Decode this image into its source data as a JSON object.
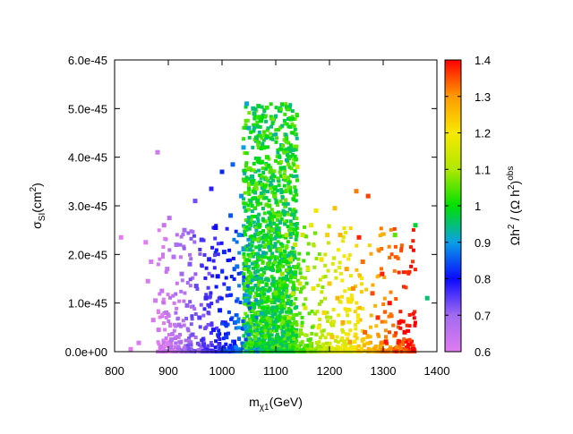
{
  "chart_data": {
    "type": "scatter",
    "xlabel": {
      "base": "m",
      "sub": "χ1",
      "unit": "(GeV)"
    },
    "ylabel": {
      "base": "σ",
      "sub": "SI",
      "unit": "(cm",
      "sup": "2",
      "close": ")"
    },
    "colorbar_label": {
      "a": "Ωh",
      "a_sup": "2",
      "mid": " / (Ω h",
      "b_sup": "2",
      "close": ")",
      "sup": "obs"
    },
    "xlim": [
      800,
      1400
    ],
    "ylim": [
      0,
      6e-45
    ],
    "clim": [
      0.6,
      1.4
    ],
    "x_ticks": [
      800,
      900,
      1000,
      1100,
      1200,
      1300,
      1400
    ],
    "x_tick_labels": [
      "800",
      "900",
      "1000",
      "1100",
      "1200",
      "1300",
      "1400"
    ],
    "y_ticks": [
      0,
      1e-45,
      2e-45,
      3e-45,
      4e-45,
      5e-45,
      6e-45
    ],
    "y_tick_labels": [
      "0.0e+00",
      "1.0e-45",
      "2.0e-45",
      "3.0e-45",
      "4.0e-45",
      "5.0e-45",
      "6.0e-45"
    ],
    "c_ticks": [
      0.6,
      0.7,
      0.8,
      0.9,
      1.0,
      1.1,
      1.2,
      1.3,
      1.4
    ],
    "c_tick_labels": [
      "0.6",
      "0.7",
      "0.8",
      "0.9",
      "1",
      "1.1",
      "1.2",
      "1.3",
      "1.4"
    ],
    "grid": false,
    "points": [
      [
        812,
        2.35e-45,
        0.6
      ],
      [
        830,
        5e-47,
        0.6
      ],
      [
        845,
        1.8e-46,
        0.61
      ],
      [
        858,
        2.25e-45,
        0.6
      ],
      [
        862,
        1.45e-45,
        0.61
      ],
      [
        868,
        1.85e-45,
        0.61
      ],
      [
        872,
        6.5e-46,
        0.62
      ],
      [
        876,
        1.05e-45,
        0.62
      ],
      [
        880,
        4.1e-45,
        0.63
      ],
      [
        882,
        4.5e-46,
        0.63
      ],
      [
        888,
        1.25e-45,
        0.64
      ],
      [
        892,
        2.6e-45,
        0.64
      ],
      [
        896,
        8e-46,
        0.65
      ],
      [
        898,
        1.7e-45,
        0.65
      ],
      [
        902,
        2.75e-45,
        0.66
      ],
      [
        906,
        2.5e-46,
        0.66
      ],
      [
        910,
        1.95e-45,
        0.67
      ],
      [
        915,
        2.2e-45,
        0.68
      ],
      [
        920,
        5.5e-46,
        0.69
      ],
      [
        925,
        1.6e-45,
        0.7
      ],
      [
        930,
        2.5e-45,
        0.7
      ],
      [
        935,
        9.5e-46,
        0.71
      ],
      [
        940,
        1.8e-45,
        0.72
      ],
      [
        945,
        3.5e-46,
        0.73
      ],
      [
        950,
        3.1e-45,
        0.73
      ],
      [
        952,
        1.35e-45,
        0.74
      ],
      [
        958,
        7e-46,
        0.75
      ],
      [
        962,
        2.3e-45,
        0.76
      ],
      [
        966,
        1.5e-46,
        0.76
      ],
      [
        970,
        1.1e-45,
        0.77
      ],
      [
        976,
        1.9e-45,
        0.78
      ],
      [
        980,
        3.35e-45,
        0.78
      ],
      [
        984,
        4.5e-46,
        0.79
      ],
      [
        988,
        2.55e-45,
        0.8
      ],
      [
        992,
        1.55e-45,
        0.8
      ],
      [
        996,
        8.5e-46,
        0.81
      ],
      [
        1000,
        3.7e-45,
        0.82
      ],
      [
        1004,
        2.05e-45,
        0.82
      ],
      [
        1008,
        3e-46,
        0.83
      ],
      [
        1012,
        1.3e-45,
        0.84
      ],
      [
        1016,
        2.8e-45,
        0.85
      ],
      [
        1020,
        3.85e-45,
        0.86
      ],
      [
        1024,
        6e-46,
        0.86
      ],
      [
        1028,
        1.75e-45,
        0.87
      ],
      [
        1032,
        2.4e-45,
        0.88
      ],
      [
        1036,
        3.2e-45,
        0.89
      ],
      [
        1040,
        4.2e-45,
        0.9
      ],
      [
        1044,
        1.05e-45,
        0.9
      ],
      [
        1046,
        5.1e-45,
        0.91
      ],
      [
        1050,
        4.6e-45,
        0.92
      ],
      [
        1052,
        2.1e-45,
        0.93
      ],
      [
        1056,
        3.6e-45,
        0.94
      ],
      [
        1058,
        5e-45,
        0.95
      ],
      [
        1060,
        4.9e-45,
        0.96
      ],
      [
        1062,
        1.5e-45,
        0.96
      ],
      [
        1064,
        4.4e-45,
        0.97
      ],
      [
        1066,
        3.1e-45,
        0.98
      ],
      [
        1068,
        5.05e-45,
        0.98
      ],
      [
        1070,
        2.6e-45,
        0.99
      ],
      [
        1072,
        4.75e-45,
        1.0
      ],
      [
        1074,
        3.9e-45,
        1.0
      ],
      [
        1076,
        9e-46,
        1.0
      ],
      [
        1078,
        4.2e-45,
        1.01
      ],
      [
        1080,
        3.4e-45,
        1.01
      ],
      [
        1082,
        2.3e-45,
        1.02
      ],
      [
        1084,
        4e-45,
        1.02
      ],
      [
        1086,
        1.8e-45,
        1.03
      ],
      [
        1088,
        3e-45,
        1.03
      ],
      [
        1090,
        3.7e-45,
        1.04
      ],
      [
        1094,
        2.5e-45,
        1.05
      ],
      [
        1098,
        3.2e-45,
        1.05
      ],
      [
        1100,
        1.2e-45,
        1.06
      ],
      [
        1104,
        2.8e-45,
        1.06
      ],
      [
        1108,
        2.1e-45,
        1.07
      ],
      [
        1112,
        1.6e-45,
        1.08
      ],
      [
        1116,
        3.6e-45,
        1.09
      ],
      [
        1120,
        2.4e-45,
        1.1
      ],
      [
        1124,
        7e-46,
        1.1
      ],
      [
        1128,
        1.9e-45,
        1.11
      ],
      [
        1132,
        1.2e-45,
        1.12
      ],
      [
        1136,
        2.2e-45,
        1.13
      ],
      [
        1140,
        3.8e-45,
        1.14
      ],
      [
        1145,
        1.4e-45,
        1.14
      ],
      [
        1150,
        2.4e-45,
        1.15
      ],
      [
        1155,
        9e-46,
        1.16
      ],
      [
        1160,
        1.7e-45,
        1.17
      ],
      [
        1166,
        2.6e-45,
        1.18
      ],
      [
        1170,
        1.3e-45,
        1.18
      ],
      [
        1175,
        2.9e-45,
        1.19
      ],
      [
        1180,
        5e-46,
        1.2
      ],
      [
        1185,
        1.9e-45,
        1.21
      ],
      [
        1190,
        8e-46,
        1.22
      ],
      [
        1196,
        2.4e-45,
        1.23
      ],
      [
        1200,
        1.4e-45,
        1.24
      ],
      [
        1205,
        3e-46,
        1.25
      ],
      [
        1210,
        2.95e-45,
        1.25
      ],
      [
        1215,
        1.1e-45,
        1.26
      ],
      [
        1220,
        2.4e-45,
        1.27
      ],
      [
        1225,
        6e-46,
        1.28
      ],
      [
        1232,
        1.7e-45,
        1.29
      ],
      [
        1238,
        2e-46,
        1.3
      ],
      [
        1244,
        1.3e-45,
        1.31
      ],
      [
        1250,
        3.3e-45,
        1.32
      ],
      [
        1255,
        2.35e-45,
        1.38
      ],
      [
        1262,
        1.85e-45,
        1.33
      ],
      [
        1266,
        4e-46,
        1.34
      ],
      [
        1272,
        3.2e-45,
        1.36
      ],
      [
        1280,
        1.2e-45,
        1.35
      ],
      [
        1290,
        7e-46,
        1.37
      ],
      [
        1298,
        1.6e-45,
        1.38
      ],
      [
        1305,
        2e-46,
        1.39
      ],
      [
        1312,
        1e-45,
        1.39
      ],
      [
        1322,
        2.4e-45,
        1.05
      ],
      [
        1330,
        6e-46,
        1.4
      ],
      [
        1340,
        4e-46,
        1.4
      ],
      [
        1348,
        1.5e-46,
        1.4
      ],
      [
        1356,
        5e-47,
        1.4
      ],
      [
        1360,
        2.6e-45,
        0.98
      ],
      [
        1382,
        1.1e-45,
        0.95
      ]
    ]
  }
}
